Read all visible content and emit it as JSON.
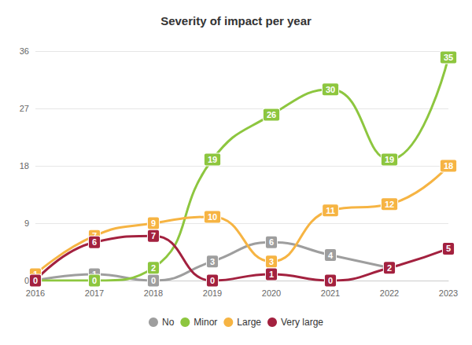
{
  "chart_data": {
    "type": "line",
    "title": "Severity of impact per year",
    "categories": [
      "2016",
      "2017",
      "2018",
      "2019",
      "2020",
      "2021",
      "2022",
      "2023"
    ],
    "series": [
      {
        "name": "No",
        "color": "#9e9e9e",
        "values": [
          0,
          1,
          0,
          3,
          6,
          4,
          2,
          null
        ]
      },
      {
        "name": "Minor",
        "color": "#8dc63f",
        "values": [
          0,
          0,
          2,
          19,
          26,
          30,
          19,
          35
        ]
      },
      {
        "name": "Large",
        "color": "#f6b443",
        "values": [
          1,
          7,
          9,
          10,
          3,
          11,
          12,
          18
        ]
      },
      {
        "name": "Very large",
        "color": "#a3213f",
        "values": [
          0,
          6,
          7,
          0,
          1,
          0,
          2,
          5
        ]
      }
    ],
    "ylim": [
      0,
      36
    ],
    "yticks": [
      0,
      9,
      18,
      27,
      36
    ],
    "grid": true,
    "legend": "bottom",
    "data_labels": true,
    "line_style": "smooth"
  }
}
